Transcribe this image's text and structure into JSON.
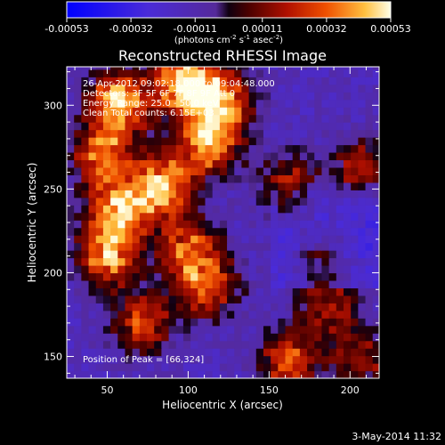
{
  "chart_data": {
    "type": "heatmap",
    "title": "Reconstructed RHESSI Image",
    "xlabel": "Heliocentric X (arcsec)",
    "ylabel": "Heliocentric Y (arcsec)",
    "xlim": [
      25,
      218
    ],
    "ylim": [
      137,
      323
    ],
    "x_ticks": [
      50,
      100,
      150,
      200
    ],
    "y_ticks": [
      150,
      200,
      250,
      300
    ],
    "colorbar": {
      "label_html": "(photons cm<tspan baseline-shift=\"super\" font-size=\"7\">-2</tspan> s<tspan baseline-shift=\"super\" font-size=\"7\">-1</tspan> asec<tspan baseline-shift=\"super\" font-size=\"7\">-2</tspan>)",
      "label": "(photons cm-2 s-1 asec-2)",
      "ticks": [
        "-0.00053",
        "-0.00032",
        "-0.00011",
        "0.00011",
        "0.00032",
        "0.00053"
      ],
      "min": -0.00053,
      "max": 0.00053
    },
    "annotations": [
      "26-Apr-2012 09:02:18.000 to 09:04:48.000",
      "Detectors: 3F 5F 6F 7F 8F 9F  Att 0",
      "Energy Range: 25.0 - 50.0 keV",
      "Clean     Total counts: 6.15E+03"
    ],
    "peak_label": "Position of Peak = [66,324]",
    "peak": [
      66,
      324
    ],
    "emission_regions": [
      {
        "x": 55,
        "y": 300,
        "level": 0.0005
      },
      {
        "x": 95,
        "y": 312,
        "level": 0.00053
      },
      {
        "x": 118,
        "y": 300,
        "level": 0.00045
      },
      {
        "x": 110,
        "y": 275,
        "level": 0.0004
      },
      {
        "x": 45,
        "y": 268,
        "level": 0.00035
      },
      {
        "x": 82,
        "y": 250,
        "level": 0.00048
      },
      {
        "x": 55,
        "y": 235,
        "level": 0.00045
      },
      {
        "x": 48,
        "y": 208,
        "level": 0.0004
      },
      {
        "x": 98,
        "y": 212,
        "level": 0.0003
      },
      {
        "x": 110,
        "y": 190,
        "level": 0.0003
      },
      {
        "x": 70,
        "y": 168,
        "level": 0.00025
      },
      {
        "x": 160,
        "y": 250,
        "level": 0.0002
      },
      {
        "x": 205,
        "y": 260,
        "level": 0.0002
      },
      {
        "x": 160,
        "y": 145,
        "level": 0.0003
      },
      {
        "x": 185,
        "y": 175,
        "level": 0.00015
      },
      {
        "x": 205,
        "y": 145,
        "level": 0.00015
      },
      {
        "x": 180,
        "y": 205,
        "level": 0.0001
      }
    ]
  },
  "footer": {
    "date": "3-May-2014 11:32"
  },
  "colors": {
    "background": "#000000",
    "text": "#ffffff"
  }
}
